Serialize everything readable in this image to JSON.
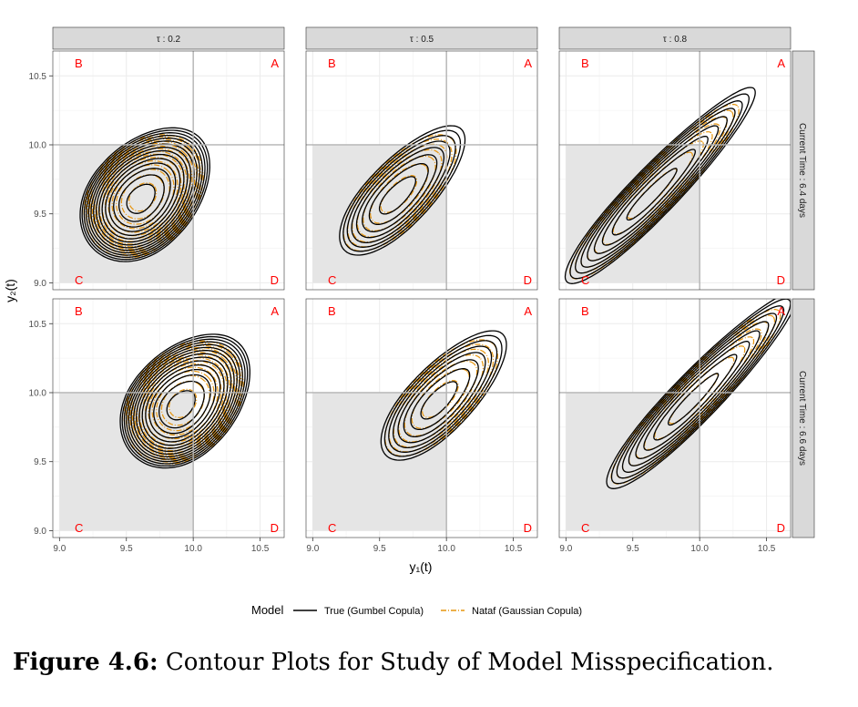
{
  "caption": {
    "label": "Figure 4.6:",
    "text": "Contour Plots for Study of Model Misspecification."
  },
  "colors": {
    "true_model": "#000000",
    "nataf_model": "#e6950f",
    "region_label": "#ff0000",
    "strip_bg": "#d9d9d9",
    "shade": "#e5e5e5"
  },
  "chart_data": {
    "type": "contour",
    "xlabel": "y₁(t)",
    "ylabel": "y₂(t)",
    "xlim": [
      8.95,
      10.68
    ],
    "ylim": [
      8.95,
      10.68
    ],
    "x_ticks": [
      9.0,
      9.5,
      10.0,
      10.5
    ],
    "y_ticks": [
      9.0,
      9.5,
      10.0,
      10.5
    ],
    "x_tick_labels": [
      "9.0",
      "9.5",
      "10.0",
      "10.5"
    ],
    "y_tick_labels": [
      "9.0",
      "9.5",
      "10.0",
      "10.5"
    ],
    "grid": true,
    "threshold": {
      "x": 10.0,
      "y": 10.0
    },
    "region_labels": [
      "B",
      "A",
      "C",
      "D"
    ],
    "col_facets": [
      "τ : 0.2",
      "τ : 0.5",
      "τ : 0.8"
    ],
    "row_facets": [
      "Current Time : 6.4 days",
      "Current Time : 6.6 days"
    ],
    "legend": {
      "title": "Model",
      "position": "bottom",
      "entries": [
        {
          "name": "True (Gumbel Copula)",
          "style": "solid",
          "color": "#000000"
        },
        {
          "name": "Nataf (Gaussian Copula)",
          "style": "dashdot",
          "color": "#e6950f"
        }
      ]
    },
    "panels": [
      {
        "row": 0,
        "col": 0,
        "tau": 0.2,
        "center": [
          9.6,
          9.6
        ],
        "sx": 0.3,
        "sy": 0.3,
        "rho": 0.3,
        "n_true": 15,
        "n_nataf": 15,
        "scale": 0.9,
        "skew_dir": [
          1,
          1
        ]
      },
      {
        "row": 0,
        "col": 1,
        "tau": 0.5,
        "center": [
          9.62,
          9.62
        ],
        "sx": 0.3,
        "sy": 0.3,
        "rho": 0.71,
        "n_true": 8,
        "n_nataf": 7,
        "scale": 0.9,
        "skew_dir": [
          1,
          1
        ]
      },
      {
        "row": 0,
        "col": 2,
        "tau": 0.8,
        "center": [
          9.62,
          9.62
        ],
        "sx": 0.3,
        "sy": 0.3,
        "rho": 0.93,
        "n_true": 9,
        "n_nataf": 8,
        "scale": 0.9,
        "skew_dir": [
          1,
          1
        ]
      },
      {
        "row": 1,
        "col": 0,
        "tau": 0.2,
        "center": [
          9.9,
          9.9
        ],
        "sx": 0.3,
        "sy": 0.3,
        "rho": 0.3,
        "n_true": 15,
        "n_nataf": 15,
        "scale": 0.9,
        "skew_dir": [
          1,
          1
        ]
      },
      {
        "row": 1,
        "col": 1,
        "tau": 0.5,
        "center": [
          9.93,
          9.93
        ],
        "sx": 0.3,
        "sy": 0.3,
        "rho": 0.71,
        "n_true": 8,
        "n_nataf": 7,
        "scale": 0.9,
        "skew_dir": [
          1,
          1
        ]
      },
      {
        "row": 1,
        "col": 2,
        "tau": 0.8,
        "center": [
          9.93,
          9.93
        ],
        "sx": 0.3,
        "sy": 0.3,
        "rho": 0.93,
        "n_true": 9,
        "n_nataf": 8,
        "scale": 0.9,
        "skew_dir": [
          1,
          1
        ]
      }
    ]
  }
}
